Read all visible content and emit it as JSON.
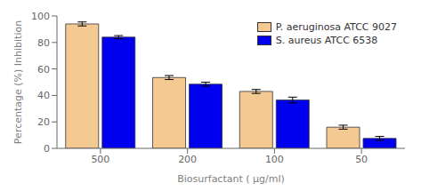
{
  "chart_data": {
    "type": "bar",
    "categories": [
      "500",
      "200",
      "100",
      "50"
    ],
    "series": [
      {
        "name": "P. aeruginosa ATCC 9027",
        "color": "#F5C992",
        "values": [
          94,
          53.5,
          43,
          16
        ],
        "errors": [
          1.5,
          1.5,
          1.5,
          1.5
        ]
      },
      {
        "name": "S. aureus ATCC 6538",
        "color": "#0000EE",
        "values": [
          84,
          48.5,
          36.5,
          7.5
        ],
        "errors": [
          1.2,
          1.5,
          2.2,
          1.5
        ]
      }
    ],
    "xlabel": "Biosurfactant ( μg/ml)",
    "ylabel": "Percentage (%) Inhibition",
    "ylim": [
      0,
      100
    ],
    "yticks": [
      0,
      20,
      40,
      60,
      80,
      100
    ],
    "legend": "upper right",
    "grid": false
  }
}
